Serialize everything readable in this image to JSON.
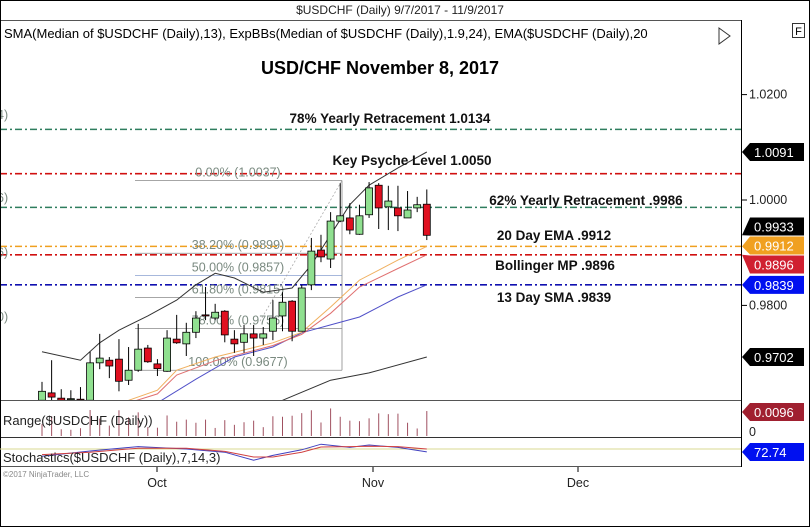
{
  "window_title": "$USDCHF (Daily)  9/7/2017 - 11/9/2017",
  "indicator_legend": "SMA(Median of $USDCHF (Daily),13), ExpBBs(Median of $USDCHF (Daily),1.9,24), EMA($USDCHF (Daily),20",
  "f_button": "F",
  "copyright": "©2017 NinjaTrader, LLC",
  "chart_data": {
    "type": "candlestick",
    "title": "USD/CHF November 8, 2017",
    "ylim": [
      0.962,
      1.028
    ],
    "y_ticks": [
      "1.0200",
      "1.0000",
      "0.9800"
    ],
    "x_ticks": [
      "Oct",
      "Nov",
      "Dec"
    ],
    "candles": [
      {
        "date": "2017-09-13",
        "o": 0.962,
        "h": 0.9655,
        "l": 0.961,
        "c": 0.9637
      },
      {
        "date": "2017-09-14",
        "o": 0.9634,
        "h": 0.9696,
        "l": 0.962,
        "c": 0.9626
      },
      {
        "date": "2017-09-15",
        "o": 0.9624,
        "h": 0.9641,
        "l": 0.9615,
        "c": 0.962
      },
      {
        "date": "2017-09-18",
        "o": 0.9622,
        "h": 0.9639,
        "l": 0.9615,
        "c": 0.9623
      },
      {
        "date": "2017-09-19",
        "o": 0.9622,
        "h": 0.9645,
        "l": 0.9615,
        "c": 0.9621
      },
      {
        "date": "2017-09-20",
        "o": 0.962,
        "h": 0.9712,
        "l": 0.9612,
        "c": 0.9691
      },
      {
        "date": "2017-09-21",
        "o": 0.9691,
        "h": 0.9746,
        "l": 0.9679,
        "c": 0.97
      },
      {
        "date": "2017-09-22",
        "o": 0.9696,
        "h": 0.9702,
        "l": 0.9662,
        "c": 0.9685
      },
      {
        "date": "2017-09-25",
        "o": 0.9698,
        "h": 0.9736,
        "l": 0.9637,
        "c": 0.9656
      },
      {
        "date": "2017-09-26",
        "o": 0.9658,
        "h": 0.9721,
        "l": 0.9649,
        "c": 0.9677
      },
      {
        "date": "2017-09-27",
        "o": 0.9677,
        "h": 0.9765,
        "l": 0.9674,
        "c": 0.9717
      },
      {
        "date": "2017-09-28",
        "o": 0.9719,
        "h": 0.9725,
        "l": 0.9691,
        "c": 0.9693
      },
      {
        "date": "2017-09-29",
        "o": 0.9689,
        "h": 0.9698,
        "l": 0.9666,
        "c": 0.968
      },
      {
        "date": "2017-10-02",
        "o": 0.9675,
        "h": 0.9753,
        "l": 0.9674,
        "c": 0.9738
      },
      {
        "date": "2017-10-03",
        "o": 0.9736,
        "h": 0.9782,
        "l": 0.9727,
        "c": 0.9729
      },
      {
        "date": "2017-10-04",
        "o": 0.9727,
        "h": 0.9767,
        "l": 0.9704,
        "c": 0.9749
      },
      {
        "date": "2017-10-05",
        "o": 0.9749,
        "h": 0.9789,
        "l": 0.9738,
        "c": 0.9776
      },
      {
        "date": "2017-10-06",
        "o": 0.9782,
        "h": 0.9835,
        "l": 0.9772,
        "c": 0.978
      },
      {
        "date": "2017-10-09",
        "o": 0.9776,
        "h": 0.9803,
        "l": 0.9772,
        "c": 0.9787
      },
      {
        "date": "2017-10-10",
        "o": 0.9789,
        "h": 0.9791,
        "l": 0.973,
        "c": 0.9744
      },
      {
        "date": "2017-10-11",
        "o": 0.9736,
        "h": 0.9753,
        "l": 0.971,
        "c": 0.9727
      },
      {
        "date": "2017-10-12",
        "o": 0.973,
        "h": 0.9763,
        "l": 0.971,
        "c": 0.9746
      },
      {
        "date": "2017-10-13",
        "o": 0.9746,
        "h": 0.9763,
        "l": 0.9704,
        "c": 0.9738
      },
      {
        "date": "2017-10-16",
        "o": 0.9738,
        "h": 0.9759,
        "l": 0.9725,
        "c": 0.9746
      },
      {
        "date": "2017-10-17",
        "o": 0.9751,
        "h": 0.981,
        "l": 0.9734,
        "c": 0.9776
      },
      {
        "date": "2017-10-18",
        "o": 0.978,
        "h": 0.9825,
        "l": 0.9751,
        "c": 0.9806
      },
      {
        "date": "2017-10-19",
        "o": 0.9808,
        "h": 0.981,
        "l": 0.9732,
        "c": 0.9751
      },
      {
        "date": "2017-10-20",
        "o": 0.9751,
        "h": 0.9839,
        "l": 0.9751,
        "c": 0.9833
      },
      {
        "date": "2017-10-23",
        "o": 0.9839,
        "h": 0.9928,
        "l": 0.9829,
        "c": 0.9903
      },
      {
        "date": "2017-10-24",
        "o": 0.9905,
        "h": 0.9934,
        "l": 0.9882,
        "c": 0.9892
      },
      {
        "date": "2017-10-25",
        "o": 0.9888,
        "h": 0.9977,
        "l": 0.9871,
        "c": 0.996
      },
      {
        "date": "2017-10-26",
        "o": 0.996,
        "h": 1.0032,
        "l": 0.9958,
        "c": 0.997
      },
      {
        "date": "2017-10-27",
        "o": 0.9966,
        "h": 0.9994,
        "l": 0.9935,
        "c": 0.9943
      },
      {
        "date": "2017-10-30",
        "o": 0.9935,
        "h": 0.9991,
        "l": 0.9934,
        "c": 0.997
      },
      {
        "date": "2017-10-31",
        "o": 0.9972,
        "h": 1.0034,
        "l": 0.9966,
        "c": 1.0023
      },
      {
        "date": "2017-11-01",
        "o": 1.0028,
        "h": 1.0032,
        "l": 0.9945,
        "c": 0.9985
      },
      {
        "date": "2017-11-02",
        "o": 0.9987,
        "h": 1.0027,
        "l": 0.9943,
        "c": 0.9998
      },
      {
        "date": "2017-11-03",
        "o": 0.9985,
        "h": 1.0027,
        "l": 0.9941,
        "c": 0.997
      },
      {
        "date": "2017-11-06",
        "o": 0.9966,
        "h": 1.0017,
        "l": 0.9966,
        "c": 0.9981
      },
      {
        "date": "2017-11-07",
        "o": 0.9985,
        "h": 1.0006,
        "l": 0.9977,
        "c": 0.9991
      },
      {
        "date": "2017-11-08",
        "o": 0.9992,
        "h": 1.002,
        "l": 0.9924,
        "c": 0.9933
      }
    ],
    "indicators": {
      "upper_band": {
        "color": "#333333",
        "points": [
          [
            "2017-09-13",
            0.9712
          ],
          [
            "2017-09-19",
            0.9696
          ],
          [
            "2017-09-21",
            0.9729
          ],
          [
            "2017-09-25",
            0.9753
          ],
          [
            "2017-09-28",
            0.978
          ],
          [
            "2017-10-03",
            0.981
          ],
          [
            "2017-10-05",
            0.9839
          ],
          [
            "2017-10-09",
            0.9861
          ],
          [
            "2017-10-11",
            0.9852
          ],
          [
            "2017-10-16",
            0.9825
          ],
          [
            "2017-10-19",
            0.9833
          ],
          [
            "2017-10-23",
            0.9877
          ],
          [
            "2017-10-25",
            0.9934
          ],
          [
            "2017-10-27",
            0.9991
          ],
          [
            "2017-10-31",
            1.0028
          ],
          [
            "2017-11-03",
            1.0061
          ],
          [
            "2017-11-08",
            1.0091
          ]
        ]
      },
      "lower_band": {
        "color": "#333333",
        "points": [
          [
            "2017-10-18",
            0.962
          ],
          [
            "2017-10-25",
            0.9658
          ],
          [
            "2017-10-31",
            0.9672
          ],
          [
            "2017-11-08",
            0.9702
          ]
        ]
      },
      "sma13": {
        "color": "#5050c8",
        "points": [
          [
            "2017-09-29",
            0.9615
          ],
          [
            "2017-10-05",
            0.966
          ],
          [
            "2017-10-11",
            0.9702
          ],
          [
            "2017-10-17",
            0.9721
          ],
          [
            "2017-10-20",
            0.9748
          ],
          [
            "2017-10-25",
            0.9763
          ],
          [
            "2017-10-30",
            0.9778
          ],
          [
            "2017-11-03",
            0.9816
          ],
          [
            "2017-11-08",
            0.9839
          ]
        ]
      },
      "ema20": {
        "color": "#f0b060",
        "points": [
          [
            "2017-09-26",
            0.962
          ],
          [
            "2017-09-29",
            0.9639
          ],
          [
            "2017-10-03",
            0.9677
          ],
          [
            "2017-10-09",
            0.9702
          ],
          [
            "2017-10-17",
            0.9729
          ],
          [
            "2017-10-20",
            0.9749
          ],
          [
            "2017-10-25",
            0.9797
          ],
          [
            "2017-10-30",
            0.9848
          ],
          [
            "2017-11-03",
            0.9886
          ],
          [
            "2017-11-08",
            0.9912
          ]
        ]
      },
      "bb_mid": {
        "color": "#e07070",
        "points": [
          [
            "2017-09-26",
            0.9615
          ],
          [
            "2017-09-29",
            0.9632
          ],
          [
            "2017-10-03",
            0.9668
          ],
          [
            "2017-10-09",
            0.9695
          ],
          [
            "2017-10-17",
            0.9724
          ],
          [
            "2017-10-20",
            0.9745
          ],
          [
            "2017-10-25",
            0.9785
          ],
          [
            "2017-10-30",
            0.9835
          ],
          [
            "2017-11-03",
            0.987
          ],
          [
            "2017-11-08",
            0.9896
          ]
        ]
      }
    },
    "levels": [
      {
        "label": "78% Yearly Retracement 1.0134",
        "value": 1.0134,
        "color": "#2e7d5e"
      },
      {
        "label": "Key Psyche Level 1.0050",
        "value": 1.005,
        "color": "#d01010"
      },
      {
        "label": "62% Yearly Retracement .9986",
        "value": 0.9986,
        "color": "#2e7d5e"
      },
      {
        "label": "20 Day EMA .9912",
        "value": 0.9912,
        "color": "#f0a020"
      },
      {
        "label": "Bollinger MP .9896",
        "value": 0.9896,
        "color": "#d01010"
      },
      {
        "label": "13 Day SMA .9839",
        "value": 0.9839,
        "color": "#1010b0"
      }
    ],
    "fibonacci": [
      {
        "label": "0.00% (1.0037)",
        "value": 1.0037
      },
      {
        "label": "38.20% (0.9899)",
        "value": 0.9899
      },
      {
        "label": "50.00% (0.9857)",
        "value": 0.9857
      },
      {
        "label": "61.80% (0.9815)",
        "value": 0.9815
      },
      {
        "label": "78.00% (0.9756)",
        "value": 0.9756
      },
      {
        "label": "100.00% (0.9677)",
        "value": 0.9677
      }
    ],
    "left_clipped_labels": [
      "4)",
      "6)",
      "6)",
      "0)"
    ],
    "price_flags": [
      {
        "text": "1.0091",
        "value": 1.0091,
        "color": "#000000"
      },
      {
        "text": "0.9933",
        "value": 0.9933,
        "color": "#000000"
      },
      {
        "text": "0.9912",
        "value": 0.9912,
        "color": "#f0a020"
      },
      {
        "text": "0.9896",
        "value": 0.9896,
        "color": "#d02030"
      },
      {
        "text": "0.9839",
        "value": 0.9839,
        "color": "#0010f0"
      },
      {
        "text": "0.9702",
        "value": 0.9702,
        "color": "#000000"
      }
    ],
    "range_panel": {
      "label": "Range($USDCHF (Daily))",
      "last": "0.0096",
      "zero": "0",
      "color": "#a02030"
    },
    "stochastics_panel": {
      "label": "Stochastics($USDCHF (Daily),7,14,3)",
      "last": "72.74",
      "color": "#0010f0",
      "k": [
        [
          "2017-09-13",
          62
        ],
        [
          "2017-09-20",
          75
        ],
        [
          "2017-09-27",
          86
        ],
        [
          "2017-10-04",
          80
        ],
        [
          "2017-10-10",
          72
        ],
        [
          "2017-10-13",
          52
        ],
        [
          "2017-10-17",
          64
        ],
        [
          "2017-10-20",
          78
        ],
        [
          "2017-10-24",
          92
        ],
        [
          "2017-10-27",
          84
        ],
        [
          "2017-10-31",
          90
        ],
        [
          "2017-11-03",
          84
        ],
        [
          "2017-11-08",
          72.74
        ]
      ],
      "d": [
        [
          "2017-09-13",
          66
        ],
        [
          "2017-09-20",
          72
        ],
        [
          "2017-09-27",
          82
        ],
        [
          "2017-10-04",
          82
        ],
        [
          "2017-10-10",
          74
        ],
        [
          "2017-10-13",
          60
        ],
        [
          "2017-10-17",
          60
        ],
        [
          "2017-10-20",
          72
        ],
        [
          "2017-10-24",
          85
        ],
        [
          "2017-10-27",
          86
        ],
        [
          "2017-10-31",
          87
        ],
        [
          "2017-11-03",
          86
        ],
        [
          "2017-11-08",
          80
        ]
      ],
      "level": 80
    }
  }
}
